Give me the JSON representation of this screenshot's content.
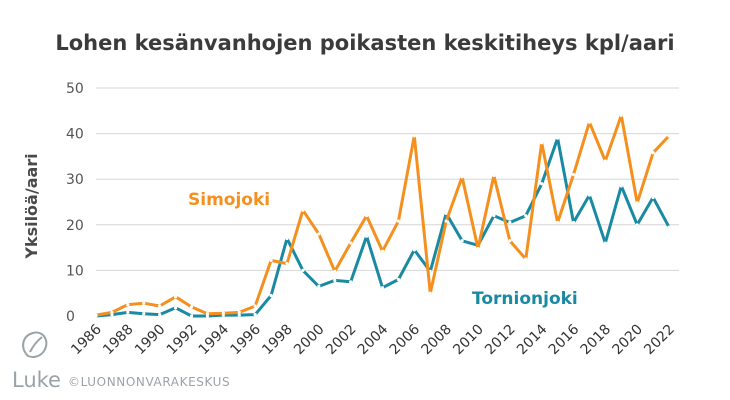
{
  "chart_data": {
    "type": "line",
    "title": "Lohen kesänvanhojen poikasten keskitiheys kpl/aari",
    "ylabel": "Yksilöä/aari",
    "xlabel": "",
    "ylim": [
      0,
      50
    ],
    "yticks": [
      0,
      10,
      20,
      30,
      40,
      50
    ],
    "grid": true,
    "x": [
      1986,
      1987,
      1988,
      1989,
      1990,
      1991,
      1992,
      1993,
      1994,
      1995,
      1996,
      1997,
      1998,
      1999,
      2000,
      2001,
      2002,
      2003,
      2004,
      2005,
      2006,
      2007,
      2008,
      2009,
      2010,
      2011,
      2012,
      2013,
      2014,
      2015,
      2016,
      2017,
      2018,
      2019,
      2020,
      2021,
      2022
    ],
    "xtick_labels": [
      "1986",
      "1988",
      "1990",
      "1992",
      "1994",
      "1996",
      "1998",
      "2000",
      "2002",
      "2004",
      "2006",
      "2008",
      "2010",
      "2012",
      "2014",
      "2016",
      "2018",
      "2020",
      "2022"
    ],
    "series": [
      {
        "name": "Simojoki",
        "color": "#f5901e",
        "label_position": "left-middle",
        "values": [
          0.2,
          0.8,
          2.5,
          2.8,
          2.2,
          4.2,
          2.0,
          0.5,
          0.6,
          0.8,
          2.2,
          12.2,
          11.5,
          23.2,
          18.0,
          9.8,
          16.0,
          22.0,
          14.2,
          20.8,
          39.5,
          5.0,
          20.8,
          30.5,
          14.8,
          30.8,
          16.5,
          12.5,
          38.0,
          20.5,
          31.0,
          42.5,
          34.0,
          44.0,
          24.8,
          35.8,
          39.5
        ]
      },
      {
        "name": "Tornionjoki",
        "color": "#1a8aa3",
        "label_position": "bottom-right",
        "values": [
          0.0,
          0.3,
          0.8,
          0.5,
          0.3,
          1.8,
          0.0,
          0.0,
          0.2,
          0.2,
          0.3,
          4.5,
          17.0,
          10.0,
          6.5,
          7.8,
          7.5,
          17.5,
          6.2,
          8.0,
          14.5,
          9.8,
          22.5,
          16.5,
          15.5,
          22.0,
          20.5,
          22.0,
          29.0,
          39.0,
          20.5,
          26.5,
          16.0,
          28.5,
          20.0,
          26.0,
          19.5
        ]
      }
    ]
  },
  "footer": {
    "logo_text": "Luke",
    "copyright": "©LUONNONVARAKESKUS"
  }
}
